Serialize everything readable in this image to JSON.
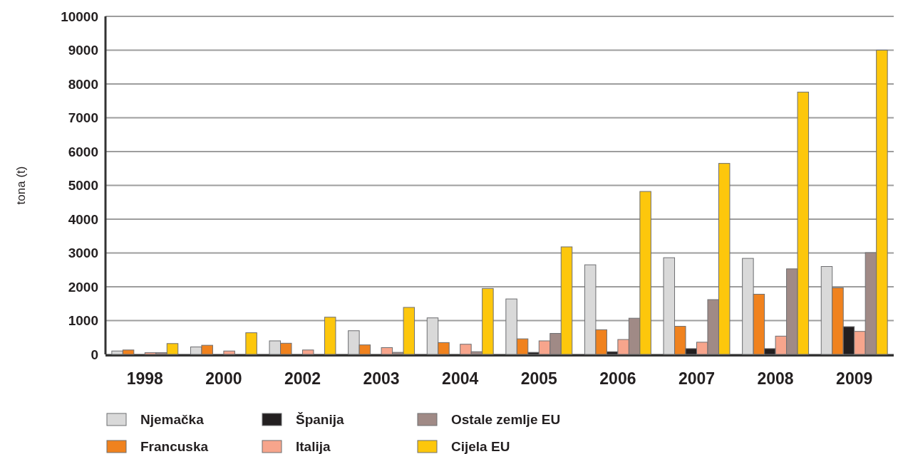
{
  "chart_data": {
    "type": "bar",
    "ylabel": "tona (t)",
    "categories": [
      "1998",
      "2000",
      "2002",
      "2003",
      "2004",
      "2005",
      "2006",
      "2007",
      "2008",
      "2009"
    ],
    "series": [
      {
        "name": "Njemačka",
        "color": "#d9d9d9",
        "values": [
          100,
          220,
          400,
          700,
          1080,
          1640,
          2650,
          2860,
          2840,
          2600
        ]
      },
      {
        "name": "Francuska",
        "color": "#f0821e",
        "values": [
          130,
          270,
          330,
          280,
          350,
          460,
          730,
          830,
          1780,
          1970
        ]
      },
      {
        "name": "Španija",
        "color": "#231f20",
        "values": [
          0,
          0,
          0,
          0,
          0,
          60,
          80,
          170,
          170,
          820
        ]
      },
      {
        "name": "Italija",
        "color": "#f7a58c",
        "values": [
          50,
          100,
          130,
          200,
          300,
          400,
          440,
          360,
          540,
          680
        ]
      },
      {
        "name": "Ostale zemlje EU",
        "color": "#a08a86",
        "values": [
          50,
          0,
          0,
          60,
          80,
          620,
          1070,
          1620,
          2530,
          3010
        ]
      },
      {
        "name": "Cijela EU",
        "color": "#fdc70c",
        "values": [
          320,
          640,
          1100,
          1390,
          1950,
          3180,
          4820,
          5650,
          7760,
          9000
        ]
      }
    ],
    "ylim": [
      0,
      10000
    ],
    "yticks": [
      0,
      1000,
      2000,
      3000,
      4000,
      5000,
      6000,
      7000,
      8000,
      9000,
      10000
    ],
    "grid": "y",
    "legend": "bottom"
  }
}
